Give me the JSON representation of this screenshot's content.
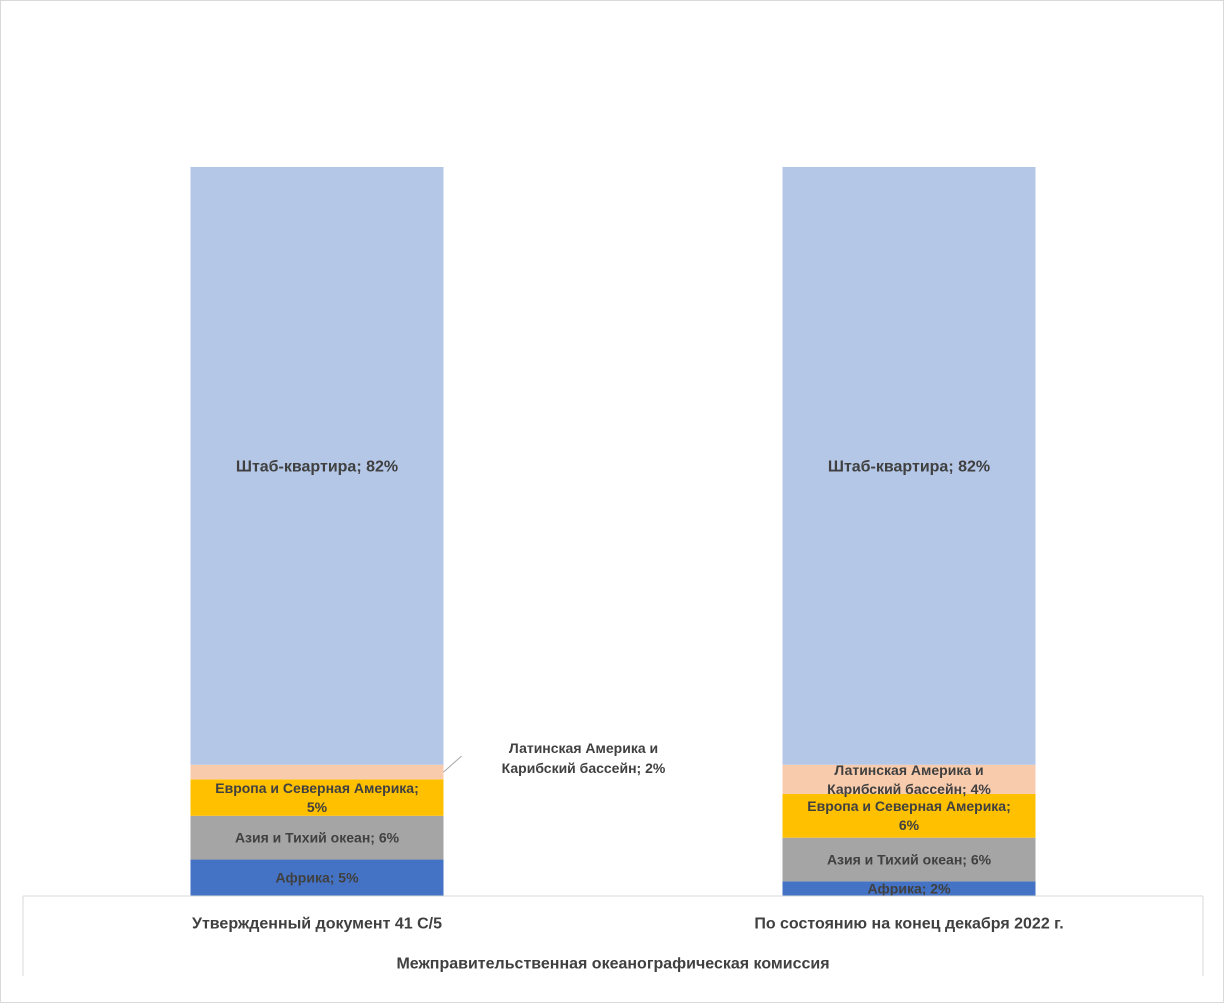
{
  "chart_data": {
    "type": "bar",
    "stacked": true,
    "percent": true,
    "categories": [
      "Утвержденный документ 41 C/5",
      "По состоянию на конец декабря 2022 г."
    ],
    "group_label": "Межправительственная океанографическая комиссия",
    "ylim": [
      0,
      100
    ],
    "grid": false,
    "legend": "none",
    "series": [
      {
        "name": "Африка",
        "values": [
          5,
          2
        ],
        "color": "#4472c4",
        "labels": [
          "Африка; 5%",
          "Африка; 2%"
        ]
      },
      {
        "name": "Азия и Тихий океан",
        "values": [
          6,
          6
        ],
        "color": "#a5a5a5",
        "labels": [
          "Азия и Тихий океан; 6%",
          "Азия и Тихий океан; 6%"
        ]
      },
      {
        "name": "Европа и Северная Америка",
        "values": [
          5,
          6
        ],
        "color": "#ffc000",
        "labels": [
          "Европа и Северная Америка;\n5%",
          "Европа и Северная Америка;\n6%"
        ]
      },
      {
        "name": "Латинская Америка и Карибский бассейн",
        "values": [
          2,
          4
        ],
        "color": "#f8cbad",
        "labels": [
          "Латинская Америка и\nКарибский бассейн; 2%",
          "Латинская Америка и\nКарибский бассейн; 4%"
        ],
        "callout": [
          true,
          false
        ]
      },
      {
        "name": "Штаб-квартира",
        "values": [
          82,
          82
        ],
        "color": "#b4c7e7",
        "labels": [
          "Штаб-квартира; 82%",
          "Штаб-квартира; 82%"
        ]
      }
    ]
  }
}
